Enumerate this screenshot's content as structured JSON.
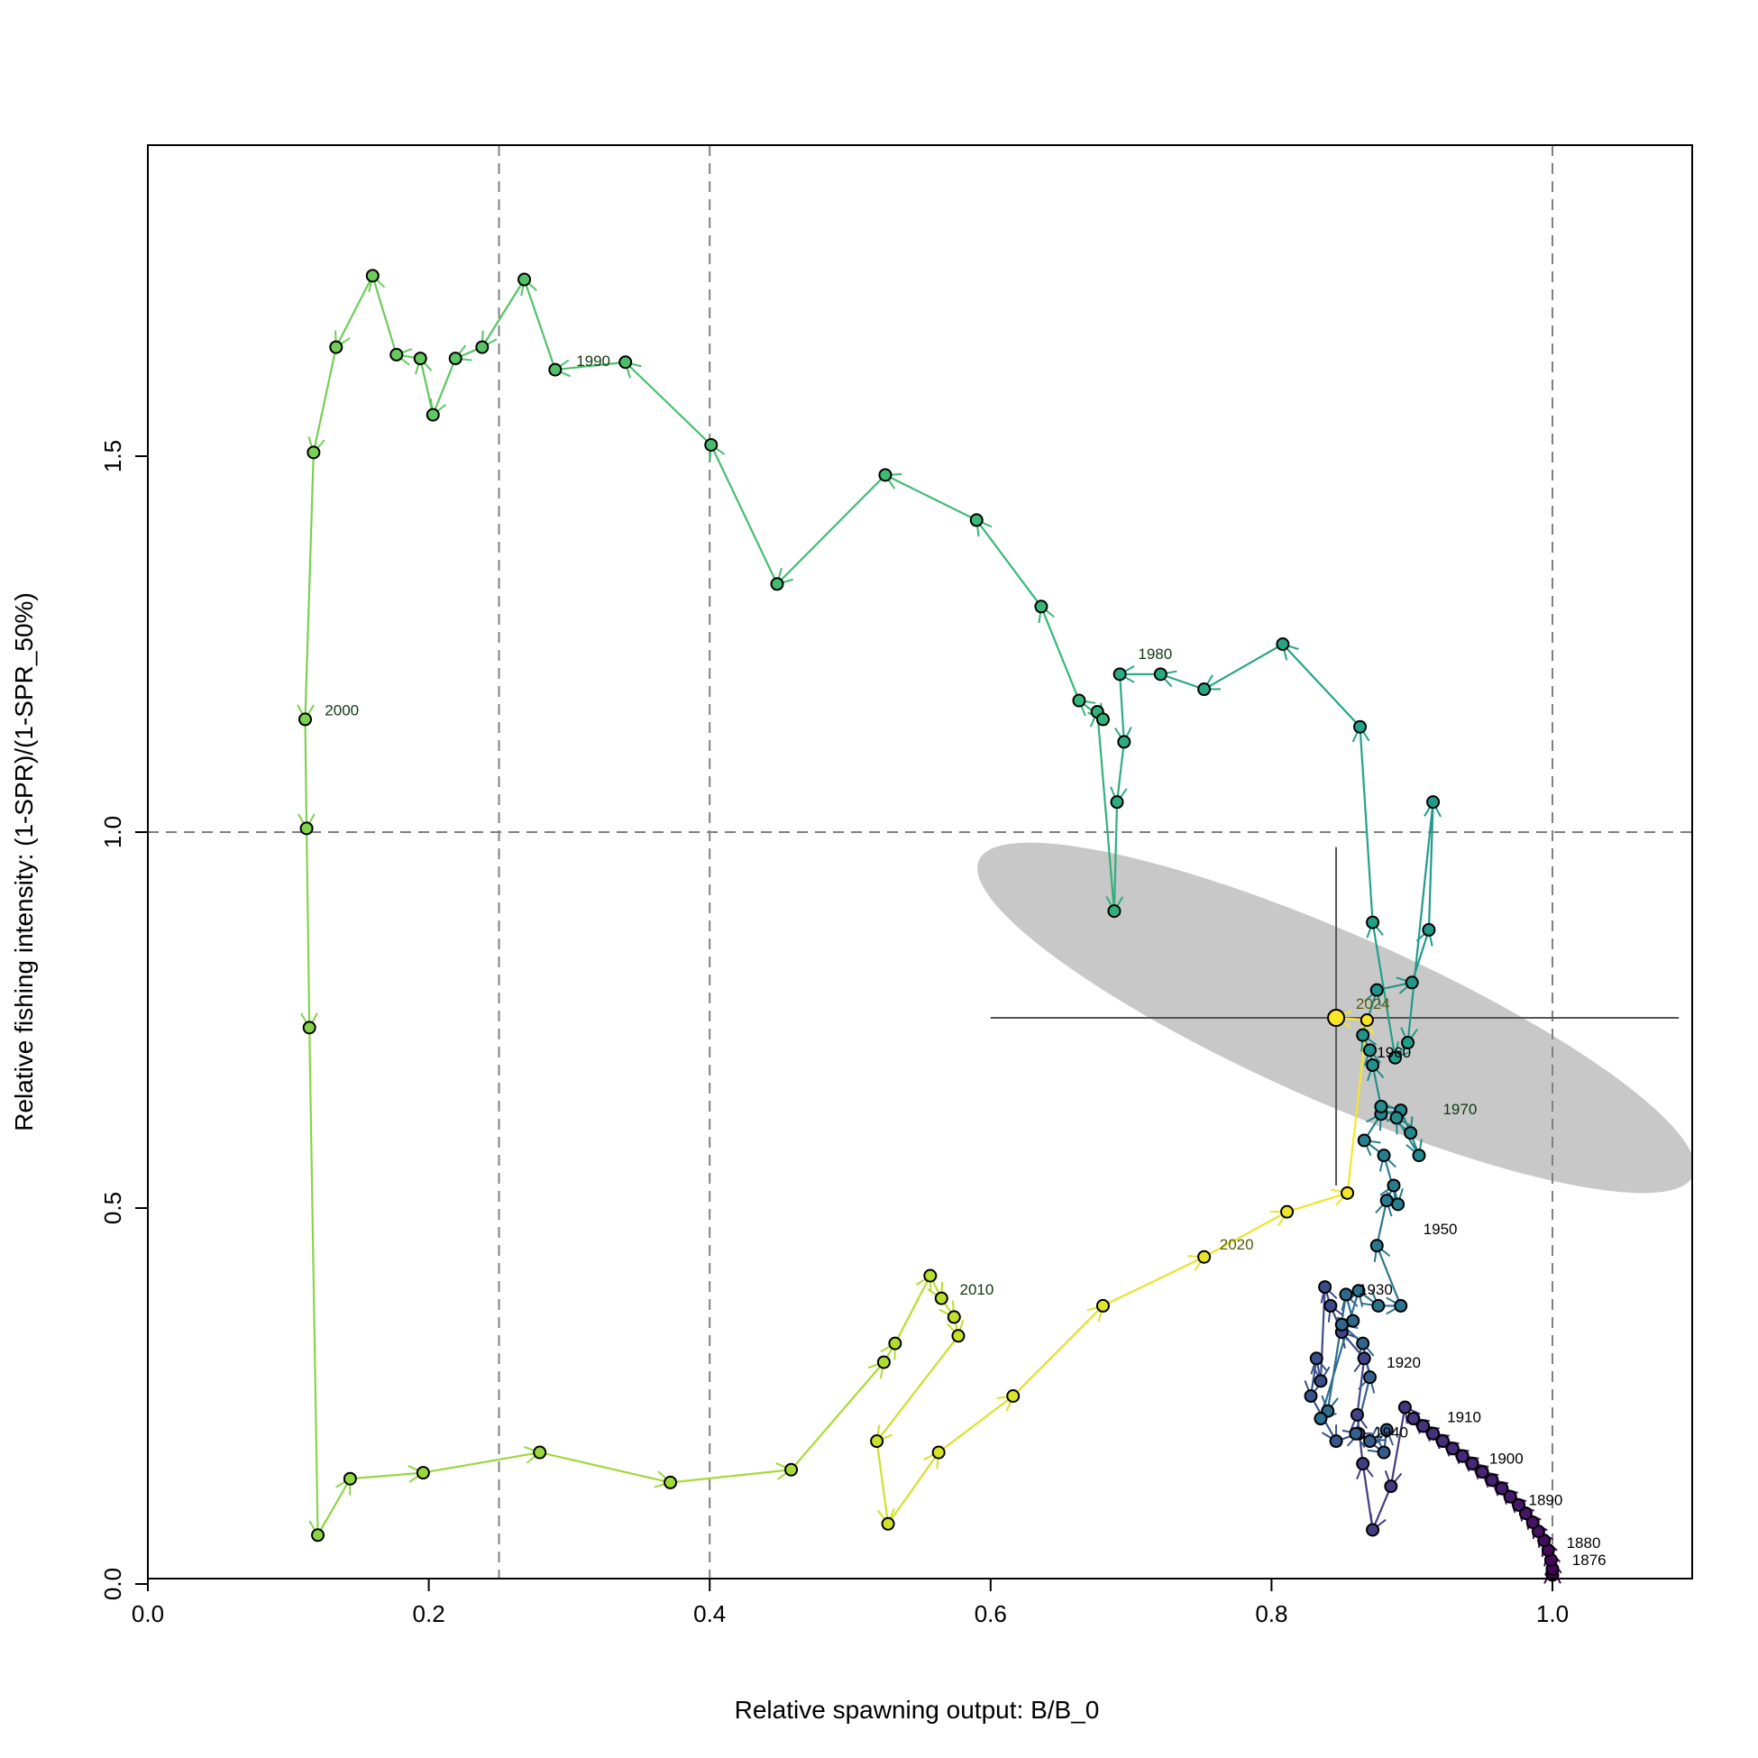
{
  "chart_data": {
    "type": "scatter",
    "title": "",
    "xlabel": "Relative spawning output: B/B_0",
    "ylabel": "Relative fishing intensity: (1-SPR)/(1-SPR_50%)",
    "xlim": [
      0,
      1.1
    ],
    "ylim": [
      0,
      1.9
    ],
    "x_ticks": [
      "0.0",
      "0.2",
      "0.4",
      "0.6",
      "0.8",
      "1.0"
    ],
    "y_ticks": [
      "0.0",
      "0.5",
      "1.0",
      "1.5"
    ],
    "grid": false,
    "reference_lines": {
      "vertical_dashed": [
        0.25,
        0.4,
        1.0
      ],
      "horizontal_dashed": [
        1.0
      ]
    },
    "final_year_point": {
      "x": 0.846,
      "y": 0.753,
      "color": "#FDE725"
    },
    "final_year_intervals": {
      "x": [
        0.6,
        1.09
      ],
      "y": [
        0.53,
        0.98
      ]
    },
    "confidence_ellipse": {
      "center": [
        0.846,
        0.753
      ],
      "color": "#BEBEBE"
    },
    "colors": {
      "start": "#440154",
      "mid": "#21918C",
      "end": "#FDE725",
      "ellipse": "#C8C8C8",
      "ref_line": "#808080",
      "ci_line": "#555555"
    },
    "series": [
      {
        "x": [
          1.0,
          1.0,
          0.999,
          0.997,
          0.994,
          0.99,
          0.986,
          0.981,
          0.976,
          0.97,
          0.964,
          0.957,
          0.95,
          0.943,
          0.936,
          0.929,
          0.922,
          0.915,
          0.908,
          0.901,
          0.895,
          0.885,
          0.872,
          0.865,
          0.861,
          0.866,
          0.85,
          0.842,
          0.838,
          0.835,
          0.832,
          0.828,
          0.846,
          0.862,
          0.88,
          0.882,
          0.87,
          0.86,
          0.87,
          0.865,
          0.85,
          0.858,
          0.853,
          0.84,
          0.835,
          0.862,
          0.876,
          0.892,
          0.875,
          0.882,
          0.887,
          0.89,
          0.88,
          0.866,
          0.878,
          0.892,
          0.899,
          0.905,
          0.889,
          0.878,
          0.872,
          0.87,
          0.865,
          0.875,
          0.9,
          0.912,
          0.915,
          0.897,
          0.888,
          0.872,
          0.863,
          0.808,
          0.752,
          0.721,
          0.692,
          0.695,
          0.69,
          0.688,
          0.676,
          0.68,
          0.663,
          0.636,
          0.59,
          0.525,
          0.448,
          0.401,
          0.34,
          0.29,
          0.268,
          0.238,
          0.219,
          0.203,
          0.194,
          0.177,
          0.16,
          0.134,
          0.118,
          0.112,
          0.113,
          0.115,
          0.121,
          0.144,
          0.196,
          0.279,
          0.372,
          0.458,
          0.524,
          0.532,
          0.557,
          0.565,
          0.574,
          0.577,
          0.519,
          0.527,
          0.563,
          0.616,
          0.68,
          0.752,
          0.811,
          0.854,
          0.868,
          0.846
        ],
        "y": [
          0.012,
          0.02,
          0.032,
          0.045,
          0.058,
          0.07,
          0.082,
          0.094,
          0.105,
          0.116,
          0.127,
          0.138,
          0.149,
          0.16,
          0.17,
          0.18,
          0.19,
          0.2,
          0.21,
          0.22,
          0.235,
          0.13,
          0.072,
          0.16,
          0.225,
          0.3,
          0.335,
          0.37,
          0.395,
          0.27,
          0.3,
          0.25,
          0.19,
          0.2,
          0.175,
          0.205,
          0.19,
          0.2,
          0.275,
          0.32,
          0.345,
          0.35,
          0.385,
          0.23,
          0.22,
          0.39,
          0.37,
          0.37,
          0.45,
          0.51,
          0.53,
          0.505,
          0.57,
          0.59,
          0.625,
          0.63,
          0.6,
          0.57,
          0.62,
          0.635,
          0.69,
          0.71,
          0.73,
          0.79,
          0.8,
          0.87,
          1.04,
          0.72,
          0.7,
          0.88,
          1.14,
          1.25,
          1.19,
          1.21,
          1.21,
          1.12,
          1.04,
          0.895,
          1.16,
          1.15,
          1.175,
          1.3,
          1.415,
          1.475,
          1.33,
          1.515,
          1.625,
          1.615,
          1.735,
          1.645,
          1.63,
          1.555,
          1.63,
          1.635,
          1.74,
          1.645,
          1.505,
          1.15,
          1.005,
          0.74,
          0.065,
          0.14,
          0.148,
          0.175,
          0.135,
          0.152,
          0.295,
          0.32,
          0.41,
          0.38,
          0.355,
          0.33,
          0.19,
          0.08,
          0.175,
          0.25,
          0.37,
          0.435,
          0.495,
          0.52,
          0.75,
          0.753
        ]
      }
    ],
    "year_labels": [
      {
        "text": "1876",
        "x": 1.014,
        "y": 0.025,
        "color": "#000000"
      },
      {
        "text": "1880",
        "x": 1.01,
        "y": 0.048,
        "color": "#000000"
      },
      {
        "text": "1890",
        "x": 0.983,
        "y": 0.105,
        "color": "#000000"
      },
      {
        "text": "1900",
        "x": 0.955,
        "y": 0.16,
        "color": "#000000"
      },
      {
        "text": "1910",
        "x": 0.925,
        "y": 0.215,
        "color": "#000000"
      },
      {
        "text": "1920",
        "x": 0.882,
        "y": 0.288,
        "color": "#000000"
      },
      {
        "text": "1930",
        "x": 0.862,
        "y": 0.385,
        "color": "#000000"
      },
      {
        "text": "1940",
        "x": 0.873,
        "y": 0.195,
        "color": "#000000"
      },
      {
        "text": "1950",
        "x": 0.908,
        "y": 0.465,
        "color": "#000000"
      },
      {
        "text": "1960",
        "x": 0.875,
        "y": 0.7,
        "color": "#000000"
      },
      {
        "text": "1970",
        "x": 0.922,
        "y": 0.625,
        "color": "#0F3A10"
      },
      {
        "text": "1980",
        "x": 0.705,
        "y": 1.23,
        "color": "#0F3A10"
      },
      {
        "text": "1990",
        "x": 0.305,
        "y": 1.62,
        "color": "#0F3A10"
      },
      {
        "text": "2000",
        "x": 0.126,
        "y": 1.155,
        "color": "#0F3A10"
      },
      {
        "text": "2010",
        "x": 0.578,
        "y": 0.385,
        "color": "#0F3A10"
      },
      {
        "text": "2020",
        "x": 0.763,
        "y": 0.445,
        "color": "#5A5A0A"
      },
      {
        "text": "2024",
        "x": 0.86,
        "y": 0.765,
        "color": "#5A5A0A"
      }
    ]
  }
}
